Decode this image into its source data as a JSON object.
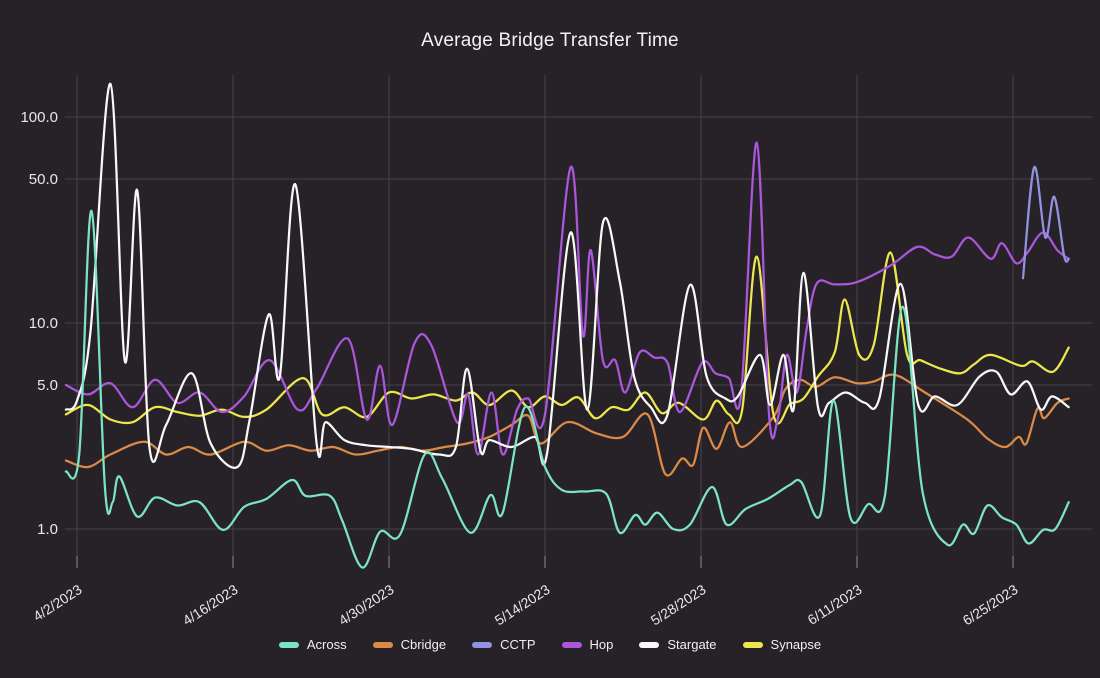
{
  "title": "Average Bridge Transfer Time",
  "colors": {
    "background": "#262227",
    "grid": "#46424a",
    "tick_mark": "#8a8a8a",
    "title_text": "#f2f2f2",
    "tick_text": "#e8e8e8"
  },
  "chart_data": {
    "type": "line",
    "title": "Average Bridge Transfer Time",
    "y_scale": "log",
    "ylim": [
      0.55,
      160
    ],
    "y_ticks": [
      1.0,
      5.0,
      10.0,
      50.0,
      100.0
    ],
    "y_tick_labels": [
      "1.0",
      "5.0",
      "10.0",
      "50.0",
      "100.0"
    ],
    "x_unit": "days since 4/1/2023",
    "x_start_date": "4/1/2023",
    "x_end_date": "6/30/2023",
    "x_tick_labels": [
      "4/2/2023",
      "4/16/2023",
      "4/30/2023",
      "5/14/2023",
      "5/28/2023",
      "6/11/2023",
      "6/25/2023"
    ],
    "x_tick_days": [
      1,
      15,
      29,
      43,
      57,
      71,
      85
    ],
    "grid": true,
    "legend_position": "bottom",
    "series": [
      {
        "name": "Across",
        "color": "#7CE3C3",
        "points": [
          [
            0,
            1.9
          ],
          [
            1.2,
            2.3
          ],
          [
            2.3,
            35
          ],
          [
            3.5,
            1.6
          ],
          [
            4.2,
            1.35
          ],
          [
            4.8,
            1.8
          ],
          [
            6.4,
            1.15
          ],
          [
            8,
            1.42
          ],
          [
            10,
            1.3
          ],
          [
            12,
            1.35
          ],
          [
            14.1,
            0.99
          ],
          [
            16,
            1.28
          ],
          [
            18,
            1.4
          ],
          [
            20.3,
            1.73
          ],
          [
            21.5,
            1.45
          ],
          [
            23.7,
            1.45
          ],
          [
            24.8,
            1.1
          ],
          [
            26.6,
            0.65
          ],
          [
            28.2,
            0.97
          ],
          [
            30,
            0.94
          ],
          [
            32.2,
            2.3
          ],
          [
            33.8,
            1.75
          ],
          [
            36.3,
            0.96
          ],
          [
            38.1,
            1.46
          ],
          [
            39.2,
            1.2
          ],
          [
            41.2,
            3.9
          ],
          [
            43,
            2.0
          ],
          [
            44.5,
            1.55
          ],
          [
            46.5,
            1.52
          ],
          [
            48.5,
            1.48
          ],
          [
            49.7,
            0.96
          ],
          [
            51.1,
            1.17
          ],
          [
            52,
            1.05
          ],
          [
            53.1,
            1.2
          ],
          [
            54.5,
            1.0
          ],
          [
            56,
            1.05
          ],
          [
            58,
            1.6
          ],
          [
            59.3,
            1.05
          ],
          [
            61,
            1.25
          ],
          [
            63,
            1.4
          ],
          [
            65,
            1.64
          ],
          [
            66,
            1.69
          ],
          [
            67.7,
            1.17
          ],
          [
            68.9,
            4.2
          ],
          [
            70.4,
            1.14
          ],
          [
            72,
            1.32
          ],
          [
            73.5,
            1.45
          ],
          [
            75.1,
            12
          ],
          [
            76.9,
            1.5
          ],
          [
            79.1,
            0.84
          ],
          [
            80.5,
            1.05
          ],
          [
            81.5,
            0.95
          ],
          [
            82.7,
            1.3
          ],
          [
            84,
            1.14
          ],
          [
            85.3,
            1.05
          ],
          [
            86.4,
            0.85
          ],
          [
            87.7,
            0.99
          ],
          [
            88.8,
            1.0
          ],
          [
            90,
            1.35
          ]
        ]
      },
      {
        "name": "Cbridge",
        "color": "#DC8A48",
        "points": [
          [
            0,
            2.15
          ],
          [
            2,
            2.0
          ],
          [
            4,
            2.3
          ],
          [
            7,
            2.65
          ],
          [
            9,
            2.3
          ],
          [
            11,
            2.5
          ],
          [
            13,
            2.3
          ],
          [
            16,
            2.65
          ],
          [
            18,
            2.4
          ],
          [
            20,
            2.55
          ],
          [
            22,
            2.4
          ],
          [
            24,
            2.5
          ],
          [
            26,
            2.3
          ],
          [
            28,
            2.4
          ],
          [
            30,
            2.5
          ],
          [
            32,
            2.4
          ],
          [
            34,
            2.5
          ],
          [
            36,
            2.6
          ],
          [
            38,
            2.8
          ],
          [
            40,
            3.2
          ],
          [
            41.5,
            3.55
          ],
          [
            42.6,
            2.6
          ],
          [
            45,
            3.3
          ],
          [
            47.7,
            2.9
          ],
          [
            50,
            2.8
          ],
          [
            52.2,
            3.6
          ],
          [
            53.8,
            1.85
          ],
          [
            55.3,
            2.2
          ],
          [
            56.3,
            2.05
          ],
          [
            57.2,
            3.1
          ],
          [
            58.4,
            2.45
          ],
          [
            59.6,
            3.3
          ],
          [
            60.7,
            2.5
          ],
          [
            63.5,
            3.5
          ],
          [
            64.6,
            4.8
          ],
          [
            65.9,
            5.3
          ],
          [
            67.3,
            4.9
          ],
          [
            69,
            5.45
          ],
          [
            71,
            5.1
          ],
          [
            72.5,
            5.2
          ],
          [
            74.4,
            5.6
          ],
          [
            77.1,
            4.6
          ],
          [
            80.9,
            3.4
          ],
          [
            82.7,
            2.75
          ],
          [
            84.3,
            2.5
          ],
          [
            85.5,
            2.8
          ],
          [
            86.2,
            2.6
          ],
          [
            87.2,
            3.85
          ],
          [
            87.8,
            3.45
          ],
          [
            89,
            4.1
          ],
          [
            90,
            4.3
          ]
        ]
      },
      {
        "name": "CCTP",
        "color": "#9193E0",
        "points": [
          [
            85.9,
            16.5
          ],
          [
            86.9,
            57
          ],
          [
            87.9,
            26
          ],
          [
            88.7,
            41
          ],
          [
            89.6,
            21
          ],
          [
            90,
            20.5
          ]
        ]
      },
      {
        "name": "Hop",
        "color": "#AB57DB",
        "points": [
          [
            0,
            5.0
          ],
          [
            2,
            4.5
          ],
          [
            4,
            5.1
          ],
          [
            6,
            3.9
          ],
          [
            8,
            5.3
          ],
          [
            10,
            4.1
          ],
          [
            12,
            4.6
          ],
          [
            14,
            3.7
          ],
          [
            16,
            4.4
          ],
          [
            18.3,
            6.6
          ],
          [
            20.8,
            3.8
          ],
          [
            22.5,
            4.8
          ],
          [
            25.3,
            8.4
          ],
          [
            27,
            3.4
          ],
          [
            28.2,
            6.2
          ],
          [
            29.3,
            3.2
          ],
          [
            31.3,
            8.0
          ],
          [
            32.8,
            7.8
          ],
          [
            35.1,
            3.3
          ],
          [
            36.1,
            4.5
          ],
          [
            37,
            2.3
          ],
          [
            38.2,
            4.6
          ],
          [
            39.2,
            2.3
          ],
          [
            40.5,
            3.8
          ],
          [
            41.5,
            4.3
          ],
          [
            43,
            3.6
          ],
          [
            45.3,
            57
          ],
          [
            46.4,
            8.7
          ],
          [
            47.1,
            22.6
          ],
          [
            48.2,
            6.6
          ],
          [
            49.3,
            6.6
          ],
          [
            50.2,
            4.6
          ],
          [
            51.5,
            7.2
          ],
          [
            52.8,
            6.8
          ],
          [
            54,
            6.4
          ],
          [
            55.1,
            3.7
          ],
          [
            57.1,
            6.4
          ],
          [
            58.3,
            5.7
          ],
          [
            59.5,
            5.4
          ],
          [
            60.6,
            4.5
          ],
          [
            62,
            75
          ],
          [
            63.1,
            3.6
          ],
          [
            63.9,
            3.45
          ],
          [
            64.7,
            7.0
          ],
          [
            65.6,
            4.6
          ],
          [
            66.5,
            9.5
          ],
          [
            67.4,
            15.6
          ],
          [
            69,
            15.4
          ],
          [
            71,
            15.8
          ],
          [
            74,
            19
          ],
          [
            76.4,
            23.4
          ],
          [
            78,
            21.5
          ],
          [
            79.5,
            21
          ],
          [
            81,
            26
          ],
          [
            83,
            20.5
          ],
          [
            84,
            24.4
          ],
          [
            85.3,
            19.5
          ],
          [
            86.3,
            22
          ],
          [
            87.7,
            27.5
          ],
          [
            89,
            22.5
          ],
          [
            90,
            20.5
          ]
        ]
      },
      {
        "name": "Stargate",
        "color": "#F8F8F8",
        "points": [
          [
            0,
            3.8
          ],
          [
            1,
            4.2
          ],
          [
            2.2,
            9
          ],
          [
            4,
            145
          ],
          [
            5.3,
            6.5
          ],
          [
            6.4,
            44
          ],
          [
            7.5,
            2.5
          ],
          [
            9,
            3.2
          ],
          [
            11.3,
            5.7
          ],
          [
            13,
            2.6
          ],
          [
            15.4,
            2.0
          ],
          [
            16.5,
            3.4
          ],
          [
            18.2,
            11
          ],
          [
            19.2,
            5.5
          ],
          [
            20.6,
            47
          ],
          [
            22.5,
            2.6
          ],
          [
            23.3,
            3.3
          ],
          [
            25,
            2.7
          ],
          [
            27,
            2.55
          ],
          [
            29,
            2.5
          ],
          [
            31,
            2.45
          ],
          [
            33.5,
            2.3
          ],
          [
            35,
            2.5
          ],
          [
            36,
            6.0
          ],
          [
            37.2,
            2.4
          ],
          [
            38,
            2.7
          ],
          [
            40,
            2.5
          ],
          [
            42.1,
            2.8
          ],
          [
            43.2,
            2.35
          ],
          [
            45.3,
            27.5
          ],
          [
            46.8,
            3.8
          ],
          [
            48.2,
            30.6
          ],
          [
            49.7,
            16
          ],
          [
            51,
            5.5
          ],
          [
            52.5,
            3.9
          ],
          [
            54,
            3.6
          ],
          [
            56,
            15.3
          ],
          [
            57.5,
            5.5
          ],
          [
            59.2,
            4.3
          ],
          [
            60.3,
            4.4
          ],
          [
            62.3,
            7.0
          ],
          [
            63.2,
            4.0
          ],
          [
            64.4,
            7.0
          ],
          [
            65.3,
            3.8
          ],
          [
            66.2,
            17.5
          ],
          [
            67.5,
            3.9
          ],
          [
            68.5,
            4.1
          ],
          [
            70,
            4.6
          ],
          [
            71.7,
            4.1
          ],
          [
            73,
            4.3
          ],
          [
            74.9,
            15.5
          ],
          [
            76.5,
            4.0
          ],
          [
            78,
            4.4
          ],
          [
            80,
            4.0
          ],
          [
            82,
            5.5
          ],
          [
            83.5,
            5.8
          ],
          [
            84.8,
            4.5
          ],
          [
            86.3,
            5.2
          ],
          [
            87.5,
            3.8
          ],
          [
            88.5,
            4.4
          ],
          [
            90,
            3.9
          ]
        ]
      },
      {
        "name": "Synapse",
        "color": "#EDE74E",
        "points": [
          [
            0,
            3.6
          ],
          [
            2,
            4.0
          ],
          [
            4,
            3.4
          ],
          [
            6,
            3.3
          ],
          [
            8,
            3.9
          ],
          [
            10,
            3.7
          ],
          [
            12,
            3.55
          ],
          [
            14,
            3.8
          ],
          [
            16,
            3.5
          ],
          [
            18,
            3.8
          ],
          [
            21.3,
            5.4
          ],
          [
            23,
            3.6
          ],
          [
            25,
            3.9
          ],
          [
            27,
            3.5
          ],
          [
            29,
            4.6
          ],
          [
            31,
            4.3
          ],
          [
            33,
            4.5
          ],
          [
            35,
            4.2
          ],
          [
            36.5,
            4.6
          ],
          [
            38,
            4.0
          ],
          [
            40,
            4.7
          ],
          [
            41.5,
            3.9
          ],
          [
            43,
            4.4
          ],
          [
            44.5,
            4.0
          ],
          [
            46,
            4.35
          ],
          [
            47.5,
            3.45
          ],
          [
            49,
            3.9
          ],
          [
            50.5,
            3.8
          ],
          [
            52,
            4.6
          ],
          [
            53.5,
            3.65
          ],
          [
            55,
            4.1
          ],
          [
            57.2,
            3.4
          ],
          [
            58.4,
            4.2
          ],
          [
            59.5,
            3.6
          ],
          [
            60.7,
            3.8
          ],
          [
            62,
            21
          ],
          [
            63.5,
            3.6
          ],
          [
            65,
            4.05
          ],
          [
            66.2,
            4.3
          ],
          [
            67.5,
            5.5
          ],
          [
            69,
            7.2
          ],
          [
            69.9,
            13
          ],
          [
            71.2,
            7.0
          ],
          [
            72.5,
            7.8
          ],
          [
            74,
            22
          ],
          [
            75.5,
            7.0
          ],
          [
            76.7,
            6.6
          ],
          [
            78.5,
            6.0
          ],
          [
            80.3,
            5.7
          ],
          [
            81.5,
            6.3
          ],
          [
            83,
            7.0
          ],
          [
            85.7,
            6.2
          ],
          [
            86.8,
            6.5
          ],
          [
            88.6,
            5.8
          ],
          [
            90,
            7.6
          ]
        ]
      }
    ]
  }
}
